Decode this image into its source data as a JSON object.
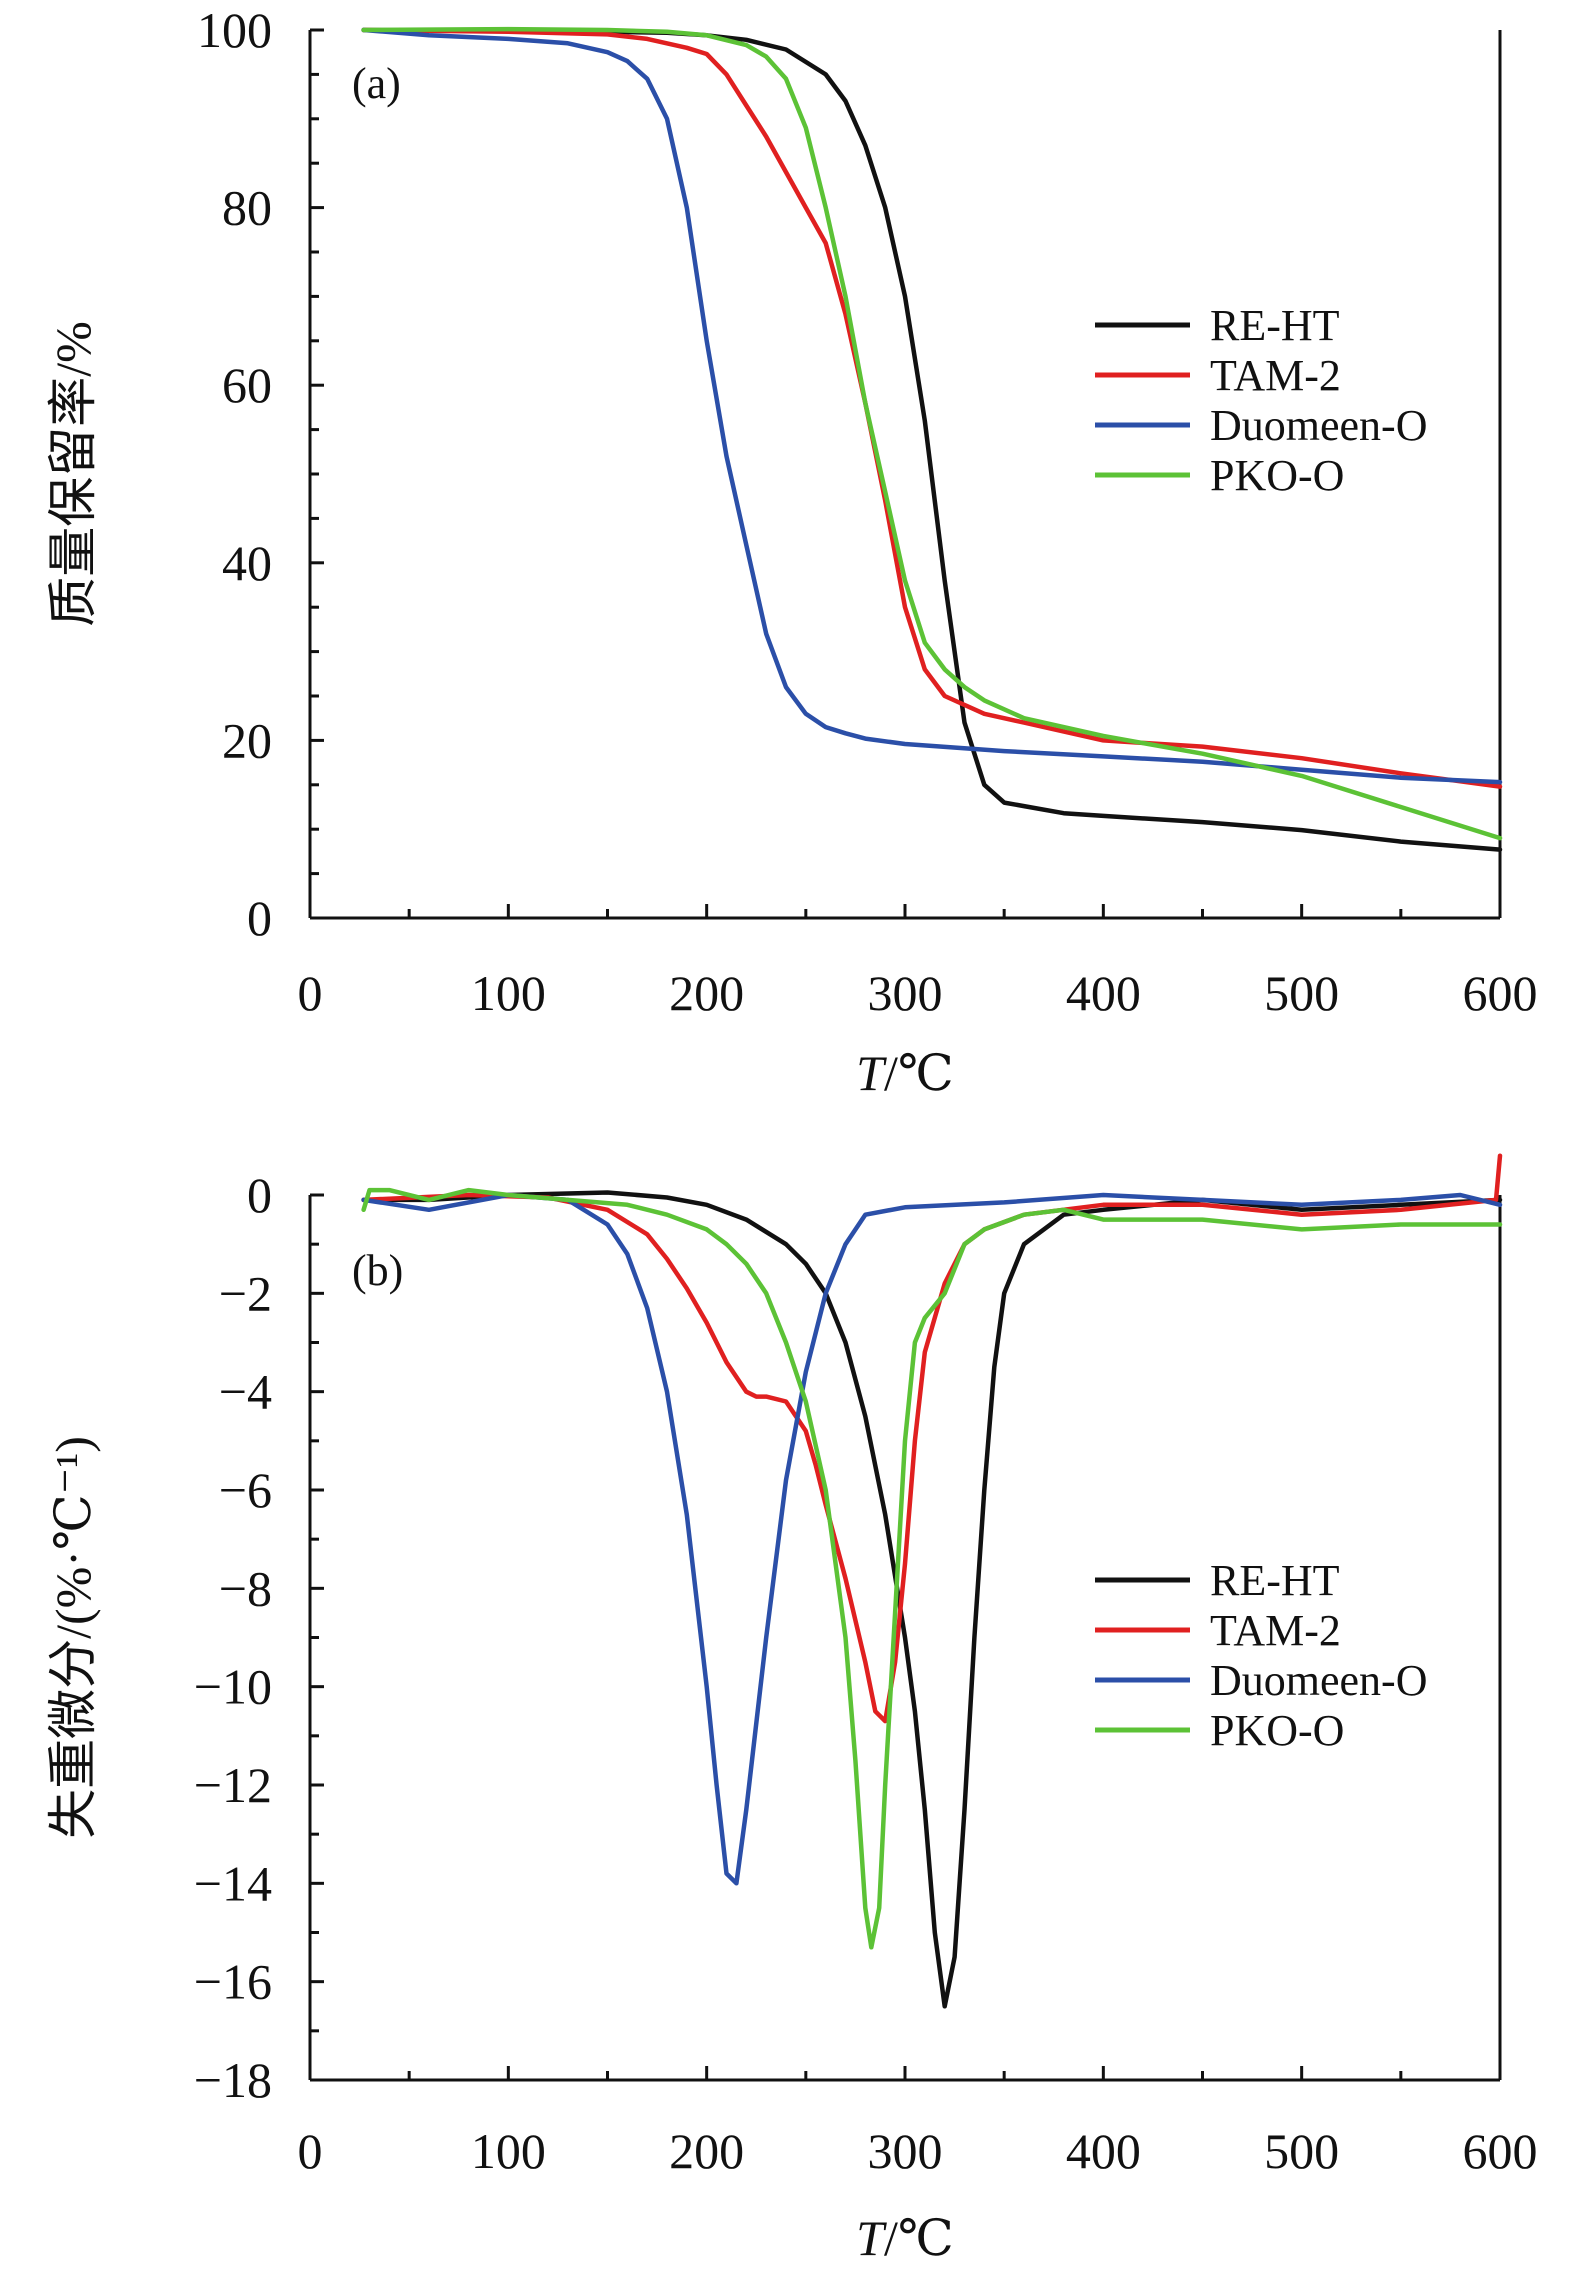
{
  "chart_data": [
    {
      "type": "line",
      "panel_label": "(a)",
      "xlabel_var": "T",
      "xlabel_unit": "/℃",
      "ylabel": "质量保留率/%",
      "xlim": [
        0,
        600
      ],
      "ylim": [
        0,
        100
      ],
      "x_ticks": [
        0,
        100,
        200,
        300,
        400,
        500,
        600
      ],
      "x_tick_labels": [
        "0",
        "100",
        "200",
        "300",
        "400",
        "500",
        "600"
      ],
      "y_ticks": [
        0,
        20,
        40,
        60,
        80,
        100
      ],
      "y_tick_labels": [
        "0",
        "20",
        "40",
        "60",
        "80",
        "100"
      ],
      "grid": false,
      "legend_position": "right",
      "series": [
        {
          "name": "RE-HT",
          "color": "#111111",
          "x": [
            27,
            100,
            150,
            180,
            200,
            220,
            240,
            260,
            270,
            280,
            290,
            300,
            310,
            320,
            330,
            340,
            350,
            360,
            380,
            400,
            450,
            500,
            550,
            600
          ],
          "y": [
            100,
            99.9,
            99.8,
            99.7,
            99.4,
            98.9,
            97.8,
            95,
            92,
            87,
            80,
            70,
            56,
            38,
            22,
            15,
            13,
            12.6,
            11.8,
            11.5,
            10.8,
            9.9,
            8.6,
            7.7
          ]
        },
        {
          "name": "TAM-2",
          "color": "#e02020",
          "x": [
            27,
            100,
            150,
            170,
            190,
            200,
            210,
            220,
            230,
            240,
            250,
            260,
            270,
            280,
            290,
            300,
            310,
            320,
            340,
            360,
            400,
            450,
            500,
            550,
            600
          ],
          "y": [
            100,
            99.8,
            99.5,
            99,
            98,
            97.3,
            95,
            91.5,
            88,
            84,
            80,
            76,
            68,
            58,
            47,
            35,
            28,
            25,
            23,
            22,
            20,
            19.3,
            18,
            16.3,
            14.8
          ]
        },
        {
          "name": "Duomeen-O",
          "color": "#2b4fa8",
          "x": [
            27,
            60,
            100,
            130,
            150,
            160,
            170,
            180,
            190,
            200,
            210,
            220,
            230,
            240,
            250,
            260,
            270,
            280,
            300,
            350,
            400,
            450,
            500,
            550,
            600
          ],
          "y": [
            100,
            99.4,
            99,
            98.5,
            97.5,
            96.5,
            94.5,
            90,
            80,
            65,
            52,
            42,
            32,
            26,
            23,
            21.5,
            20.8,
            20.2,
            19.6,
            18.8,
            18.2,
            17.6,
            16.7,
            15.8,
            15.3
          ]
        },
        {
          "name": "PKO-O",
          "color": "#5cc236",
          "x": [
            27,
            100,
            150,
            180,
            200,
            220,
            230,
            240,
            250,
            260,
            270,
            280,
            290,
            300,
            310,
            320,
            330,
            340,
            360,
            400,
            450,
            500,
            550,
            600
          ],
          "y": [
            100,
            100.1,
            100,
            99.8,
            99.4,
            98.3,
            97,
            94.5,
            89,
            80,
            70,
            58,
            48,
            38,
            31,
            28,
            26,
            24.5,
            22.5,
            20.5,
            18.5,
            16,
            12.5,
            9
          ]
        }
      ]
    },
    {
      "type": "line",
      "panel_label": "(b)",
      "xlabel_var": "T",
      "xlabel_unit": "/℃",
      "ylabel": "失重微分/(%·℃⁻¹)",
      "xlim": [
        0,
        600
      ],
      "ylim": [
        -18,
        0
      ],
      "x_ticks": [
        0,
        100,
        200,
        300,
        400,
        500,
        600
      ],
      "x_tick_labels": [
        "0",
        "100",
        "200",
        "300",
        "400",
        "500",
        "600"
      ],
      "y_ticks": [
        0,
        -2,
        -4,
        -6,
        -8,
        -10,
        -12,
        -14,
        -16,
        -18
      ],
      "y_tick_labels": [
        "0",
        "−2",
        "−4",
        "−6",
        "−8",
        "−10",
        "−12",
        "−14",
        "−16",
        "−18"
      ],
      "grid": false,
      "legend_position": "right",
      "series": [
        {
          "name": "RE-HT",
          "color": "#111111",
          "x": [
            27,
            60,
            100,
            150,
            180,
            200,
            220,
            240,
            250,
            260,
            270,
            280,
            290,
            300,
            305,
            310,
            315,
            320,
            325,
            330,
            335,
            340,
            345,
            350,
            360,
            380,
            400,
            450,
            500,
            550,
            600
          ],
          "y": [
            -0.1,
            -0.1,
            0,
            0.05,
            -0.05,
            -0.2,
            -0.5,
            -1,
            -1.4,
            -2,
            -3,
            -4.5,
            -6.5,
            -9,
            -10.5,
            -12.5,
            -15,
            -16.5,
            -15.5,
            -12.5,
            -9,
            -6,
            -3.5,
            -2,
            -1,
            -0.4,
            -0.3,
            -0.1,
            -0.3,
            -0.2,
            -0.1
          ]
        },
        {
          "name": "TAM-2",
          "color": "#e02020",
          "x": [
            27,
            80,
            120,
            150,
            170,
            180,
            190,
            200,
            210,
            220,
            225,
            230,
            240,
            250,
            255,
            260,
            270,
            280,
            285,
            290,
            295,
            300,
            305,
            310,
            320,
            330,
            340,
            360,
            400,
            450,
            500,
            550,
            598,
            600
          ],
          "y": [
            -0.1,
            0,
            -0.05,
            -0.3,
            -0.8,
            -1.3,
            -1.9,
            -2.6,
            -3.4,
            -4,
            -4.1,
            -4.1,
            -4.2,
            -4.8,
            -5.5,
            -6.3,
            -7.8,
            -9.5,
            -10.5,
            -10.7,
            -9.5,
            -7.5,
            -5,
            -3.2,
            -1.8,
            -1,
            -0.7,
            -0.4,
            -0.2,
            -0.2,
            -0.4,
            -0.3,
            -0.1,
            0.8
          ]
        },
        {
          "name": "Duomeen-O",
          "color": "#2b4fa8",
          "x": [
            27,
            60,
            100,
            130,
            150,
            160,
            170,
            180,
            190,
            200,
            205,
            210,
            215,
            220,
            230,
            240,
            250,
            260,
            270,
            280,
            300,
            350,
            400,
            450,
            500,
            550,
            580,
            600
          ],
          "y": [
            -0.1,
            -0.3,
            0,
            -0.1,
            -0.6,
            -1.2,
            -2.3,
            -4,
            -6.5,
            -10,
            -12,
            -13.8,
            -14,
            -12.5,
            -9,
            -5.8,
            -3.6,
            -2,
            -1,
            -0.4,
            -0.25,
            -0.15,
            0,
            -0.1,
            -0.2,
            -0.1,
            0,
            -0.2
          ]
        },
        {
          "name": "PKO-O",
          "color": "#5cc236",
          "x": [
            27,
            30,
            40,
            60,
            80,
            100,
            130,
            160,
            180,
            200,
            210,
            220,
            230,
            240,
            250,
            260,
            270,
            275,
            280,
            283,
            287,
            290,
            295,
            300,
            305,
            310,
            320,
            330,
            340,
            360,
            380,
            400,
            450,
            500,
            550,
            600
          ],
          "y": [
            -0.3,
            0.1,
            0.1,
            -0.1,
            0.1,
            0,
            -0.1,
            -0.2,
            -0.4,
            -0.7,
            -1,
            -1.4,
            -2,
            -3,
            -4.2,
            -6,
            -9,
            -11.5,
            -14.5,
            -15.3,
            -14.5,
            -12,
            -8.5,
            -5,
            -3,
            -2.5,
            -2,
            -1,
            -0.7,
            -0.4,
            -0.3,
            -0.5,
            -0.5,
            -0.7,
            -0.6,
            -0.6
          ]
        }
      ]
    }
  ]
}
